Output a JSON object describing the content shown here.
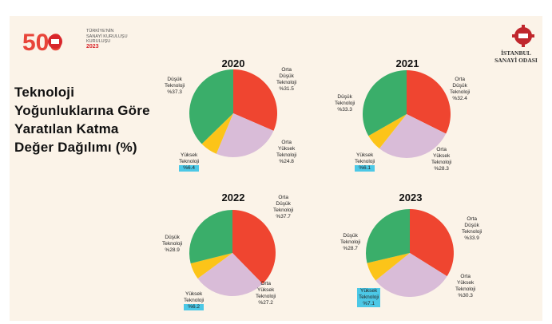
{
  "logo": {
    "number": "500",
    "line1": "TÜRKİYE'NİN",
    "line2": "SANAYİ KURULUŞU",
    "line3": "KURULUŞU",
    "year": "2023"
  },
  "org": {
    "line1": "İSTANBUL",
    "line2": "SANAYİ ODASI"
  },
  "title": "Teknoloji Yoğunluklarına Göre Yaratılan Katma Değer Dağılımı (%)",
  "colors": {
    "dusuk": "#3aae6a",
    "orta_dusuk": "#ef4530",
    "orta_yuksek": "#d9bcd8",
    "yuksek": "#fcc419",
    "highlight": "#4cc8e6"
  },
  "chart_data": [
    {
      "type": "pie",
      "title": "2020",
      "categories": [
        "Orta Düşük Teknoloji",
        "Orta Yüksek Teknoloji",
        "Yüksek Teknoloji",
        "Düşük Teknoloji"
      ],
      "values": [
        31.5,
        24.8,
        6.4,
        37.3
      ],
      "labels": {
        "dusuk": [
          "Düşük",
          "Teknoloji",
          "%37.3"
        ],
        "orta_dusuk": [
          "Orta",
          "Düşük",
          "Teknoloji",
          "%31.5"
        ],
        "orta_yuksek": [
          "Orta",
          "Yüksek",
          "Teknoloji",
          "%24.8"
        ],
        "yuksek": [
          "Yüksek",
          "Teknoloji",
          "%6.4"
        ]
      }
    },
    {
      "type": "pie",
      "title": "2021",
      "categories": [
        "Orta Düşük Teknoloji",
        "Orta Yüksek Teknoloji",
        "Yüksek Teknoloji",
        "Düşük Teknoloji"
      ],
      "values": [
        32.4,
        28.3,
        6.1,
        33.3
      ],
      "labels": {
        "dusuk": [
          "Düşük",
          "Teknoloji",
          "%33.3"
        ],
        "orta_dusuk": [
          "Orta",
          "Düşük",
          "Teknoloji",
          "%32.4"
        ],
        "orta_yuksek": [
          "Orta",
          "Yüksek",
          "Teknoloji",
          "%28.3"
        ],
        "yuksek": [
          "Yüksek",
          "Teknoloji",
          "%6.1"
        ]
      }
    },
    {
      "type": "pie",
      "title": "2022",
      "categories": [
        "Orta Düşük Teknoloji",
        "Orta Yüksek Teknoloji",
        "Yüksek Teknoloji",
        "Düşük Teknoloji"
      ],
      "values": [
        37.7,
        27.2,
        6.2,
        28.9
      ],
      "labels": {
        "dusuk": [
          "Düşük",
          "Teknoloji",
          "%28.9"
        ],
        "orta_dusuk": [
          "Orta",
          "Düşük",
          "Teknoloji",
          "%37.7"
        ],
        "orta_yuksek": [
          "Orta",
          "Yüksek",
          "Teknoloji",
          "%27.2"
        ],
        "yuksek": [
          "Yüksek",
          "Teknoloji",
          "%6.2"
        ]
      }
    },
    {
      "type": "pie",
      "title": "2023",
      "categories": [
        "Orta Düşük Teknoloji",
        "Orta Yüksek Teknoloji",
        "Yüksek Teknoloji",
        "Düşük Teknoloji"
      ],
      "values": [
        33.9,
        30.3,
        7.1,
        28.7
      ],
      "labels": {
        "dusuk": [
          "Düşük",
          "Teknoloji",
          "%28.7"
        ],
        "orta_dusuk": [
          "Orta",
          "Düşük",
          "Teknoloji",
          "%33.9"
        ],
        "orta_yuksek": [
          "Orta",
          "Yüksek",
          "Teknoloji",
          "%30.3"
        ],
        "yuksek": [
          "Yüksek",
          "Teknoloji",
          "%7.1"
        ]
      }
    }
  ]
}
